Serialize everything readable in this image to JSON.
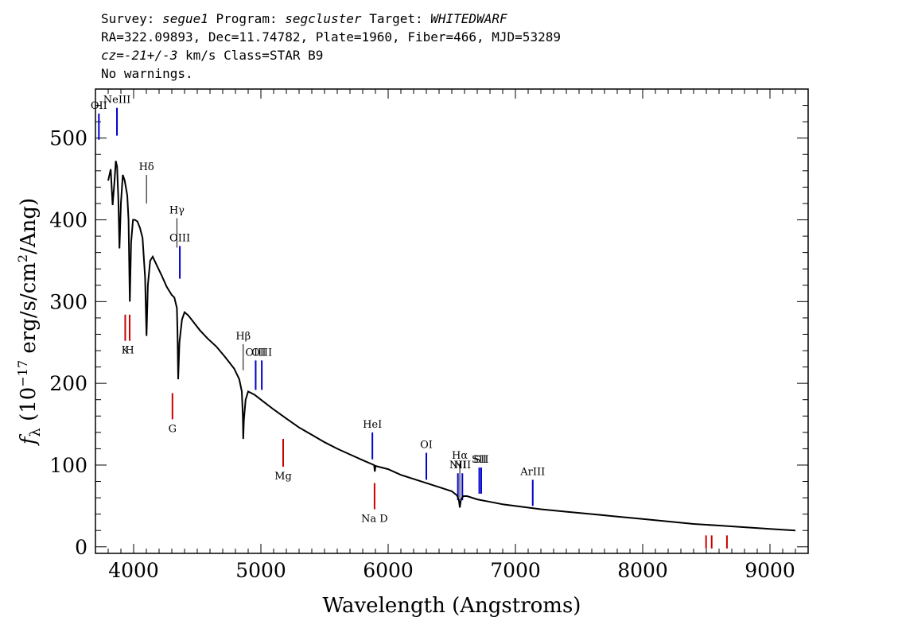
{
  "header": {
    "survey_label": "Survey:",
    "survey": "segue1",
    "program_label": "Program:",
    "program": "segcluster",
    "target_label": "Target:",
    "target": "WHITEDWARF",
    "line2": "RA=322.09893, Dec=11.74782, Plate=1960, Fiber=466, MJD=53289",
    "cz_label": "cz=",
    "cz_value": "-21+/-3",
    "cz_rest": " km/s Class=STAR B9",
    "warnings": "No warnings."
  },
  "chart_data": {
    "type": "line",
    "xlabel": "Wavelength (Angstroms)",
    "ylabel_main": "f",
    "ylabel_sub": "λ",
    "ylabel_rest": " (10",
    "ylabel_exp": "−17",
    "ylabel_tail": " erg/s/cm",
    "ylabel_exp2": "2",
    "ylabel_end": "/Ang)",
    "xlim": [
      3700,
      9300
    ],
    "ylim": [
      -8,
      560
    ],
    "x_ticks": [
      4000,
      5000,
      6000,
      7000,
      8000,
      9000
    ],
    "y_ticks": [
      0,
      100,
      200,
      300,
      400,
      500
    ],
    "series": [
      {
        "color": "#000000",
        "x": [
          3800,
          3820,
          3835,
          3850,
          3860,
          3870,
          3880,
          3889,
          3900,
          3915,
          3930,
          3950,
          3960,
          3970,
          3980,
          3995,
          4010,
          4030,
          4050,
          4070,
          4090,
          4101,
          4112,
          4130,
          4150,
          4180,
          4220,
          4260,
          4300,
          4320,
          4340,
          4345,
          4350,
          4360,
          4380,
          4400,
          4430,
          4470,
          4520,
          4580,
          4650,
          4720,
          4790,
          4830,
          4850,
          4858,
          4861,
          4866,
          4880,
          4900,
          4950,
          5000,
          5100,
          5200,
          5300,
          5400,
          5500,
          5600,
          5700,
          5800,
          5890,
          5895,
          5900,
          6000,
          6100,
          6200,
          6300,
          6400,
          6500,
          6540,
          6555,
          6563,
          6572,
          6590,
          6620,
          6700,
          6800,
          6900,
          7000,
          7200,
          7400,
          7600,
          7800,
          8000,
          8200,
          8400,
          8600,
          8800,
          9000,
          9200
        ],
        "y": [
          448,
          462,
          418,
          448,
          472,
          465,
          425,
          365,
          420,
          455,
          448,
          430,
          400,
          300,
          372,
          400,
          400,
          398,
          390,
          378,
          330,
          258,
          320,
          350,
          355,
          345,
          332,
          318,
          308,
          305,
          292,
          260,
          205,
          250,
          278,
          287,
          283,
          275,
          265,
          255,
          245,
          232,
          218,
          205,
          190,
          160,
          132,
          155,
          180,
          190,
          186,
          180,
          168,
          157,
          146,
          137,
          128,
          120,
          113,
          106,
          100,
          92,
          99,
          95,
          88,
          83,
          78,
          73,
          68,
          63,
          58,
          48,
          58,
          62,
          62,
          58,
          55,
          52,
          50,
          46,
          43,
          40,
          37,
          34,
          31,
          28,
          26,
          24,
          22,
          20
        ]
      }
    ],
    "annotations_blue": [
      {
        "label": "OII",
        "x": 3727,
        "y1": 498,
        "y2": 530
      },
      {
        "label": "NeIII",
        "x": 3869,
        "y1": 503,
        "y2": 537
      },
      {
        "label": "OIII",
        "x": 4363,
        "y1": 328,
        "y2": 368
      },
      {
        "label": "OIII",
        "x": 4959,
        "y1": 192,
        "y2": 228
      },
      {
        "label": "OIII",
        "x": 5007,
        "y1": 192,
        "y2": 228
      },
      {
        "label": "HeI",
        "x": 5876,
        "y1": 107,
        "y2": 140
      },
      {
        "label": "OI",
        "x": 6300,
        "y1": 82,
        "y2": 115
      },
      {
        "label": "NII",
        "x": 6548,
        "y1": 57,
        "y2": 90
      },
      {
        "label": "NII",
        "x": 6583,
        "y1": 57,
        "y2": 90
      },
      {
        "label": "SII",
        "x": 6716,
        "y1": 65,
        "y2": 97
      },
      {
        "label": "SII",
        "x": 6731,
        "y1": 65,
        "y2": 97
      },
      {
        "label": "ArIII",
        "x": 7136,
        "y1": 50,
        "y2": 82
      }
    ],
    "annotations_balmer": [
      {
        "label": "Hδ",
        "x": 4101,
        "y1": 420,
        "y2": 455
      },
      {
        "label": "Hγ",
        "x": 4340,
        "y1": 366,
        "y2": 402
      },
      {
        "label": "Hβ",
        "x": 4861,
        "y1": 216,
        "y2": 248
      },
      {
        "label": "Hα",
        "x": 6563,
        "y1": 60,
        "y2": 102
      }
    ],
    "annotations_red": [
      {
        "label": "K",
        "x": 3934,
        "y1": 252,
        "y2": 284
      },
      {
        "label": "H",
        "x": 3969,
        "y1": 252,
        "y2": 284
      },
      {
        "label": "G",
        "x": 4305,
        "y1": 156,
        "y2": 188
      },
      {
        "label": "Mg",
        "x": 5175,
        "y1": 98,
        "y2": 132
      },
      {
        "label": "Na D",
        "x": 5893,
        "y1": 46,
        "y2": 78
      },
      {
        "label": "",
        "x": 8498,
        "y1": -2,
        "y2": 14
      },
      {
        "label": "",
        "x": 8542,
        "y1": -2,
        "y2": 14
      },
      {
        "label": "",
        "x": 8662,
        "y1": -2,
        "y2": 14
      }
    ],
    "colors": {
      "blue": "#0000cc",
      "red": "#cc0000",
      "balmer": "#000000"
    }
  }
}
